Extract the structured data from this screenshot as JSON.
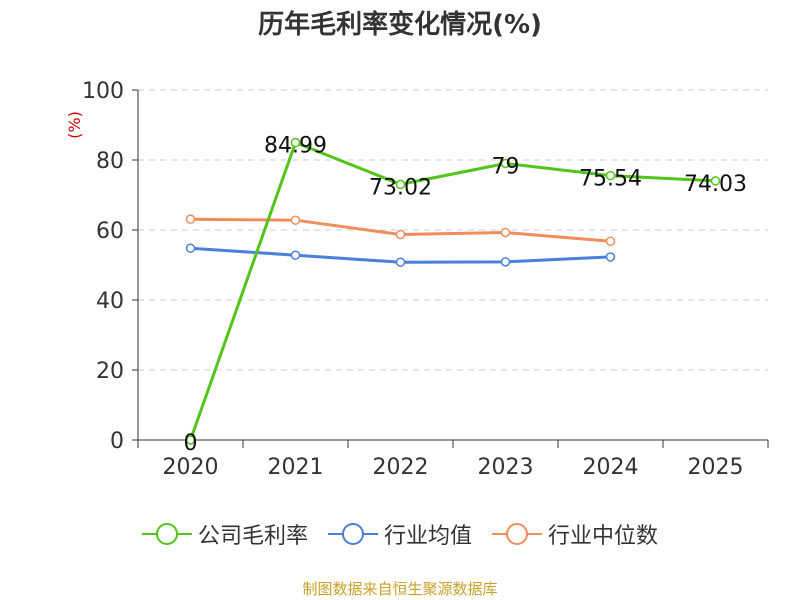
{
  "chart_data": {
    "type": "line",
    "title": "历年毛利率变化情况(%)",
    "ylabel": "(%)",
    "xlabel": "",
    "categories": [
      "2020",
      "2021",
      "2022",
      "2023",
      "2024",
      "2025"
    ],
    "ylim": [
      0,
      100
    ],
    "yticks": [
      0,
      20,
      40,
      60,
      80,
      100
    ],
    "grid": true,
    "legend_position": "bottom",
    "series": [
      {
        "name": "公司毛利率",
        "color": "#52c41a",
        "values": [
          0,
          84.99,
          73.02,
          79,
          75.54,
          74.03
        ],
        "labels": [
          "0",
          "84.99",
          "73.02",
          "79",
          "75.54",
          "74.03"
        ]
      },
      {
        "name": "行业均值",
        "color": "#4a7fdc",
        "values": [
          54.8,
          52.8,
          50.8,
          50.9,
          52.3,
          null
        ]
      },
      {
        "name": "行业中位数",
        "color": "#f28c5a",
        "values": [
          63.1,
          62.8,
          58.7,
          59.3,
          56.8,
          null
        ]
      }
    ]
  },
  "footer": {
    "source": "制图数据来自恒生聚源数据库"
  }
}
